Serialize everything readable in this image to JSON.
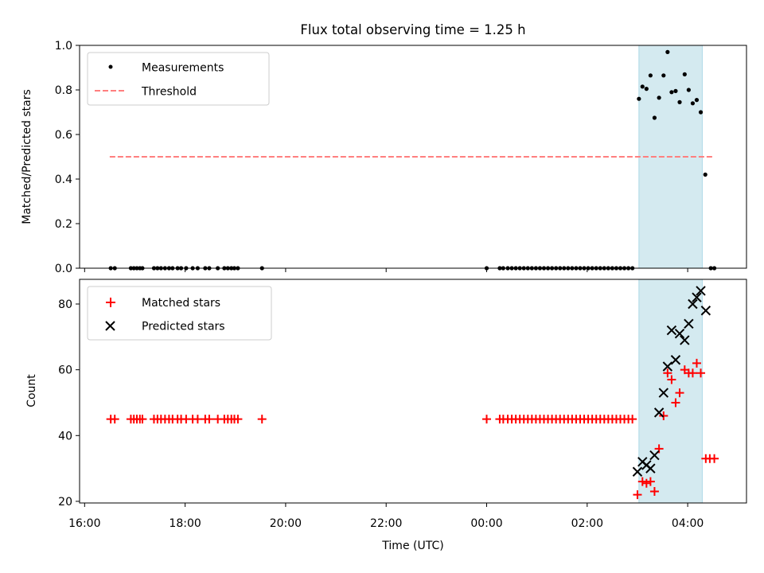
{
  "title": "Flux total observing time = 1.25 h",
  "x_axis": {
    "label": "Time (UTC)",
    "ticks": [
      {
        "label": "16:00",
        "t": -8.0
      },
      {
        "label": "18:00",
        "t": -6.0
      },
      {
        "label": "20:00",
        "t": -4.0
      },
      {
        "label": "22:00",
        "t": -2.0
      },
      {
        "label": "00:00",
        "t": 0.0
      },
      {
        "label": "02:00",
        "t": 2.0
      },
      {
        "label": "04:00",
        "t": 4.0
      }
    ],
    "range_hours_from_midnight": [
      -8.1,
      5.17
    ]
  },
  "window": {
    "start": 3.03,
    "end": 4.29,
    "color": "#d4eaf0"
  },
  "colors": {
    "measurement": "#000000",
    "threshold": "#ff7f7f",
    "matched": "#ff0000",
    "predicted": "#000000",
    "window_edge": "#add8e6"
  },
  "chart_data": [
    {
      "type": "scatter",
      "panel": "top",
      "ylabel": "Matched/Predicted stars",
      "ylim": [
        0.0,
        1.0
      ],
      "yticks": [
        "0.0",
        "0.2",
        "0.4",
        "0.6",
        "0.8",
        "1.0"
      ],
      "legend": {
        "position": "top-left",
        "entries": [
          "Measurements",
          "Threshold"
        ]
      },
      "threshold": {
        "value": 0.5,
        "x_range": [
          -7.5,
          4.5
        ]
      },
      "series": [
        {
          "name": "Measurements",
          "points": [
            [
              -7.48,
              0
            ],
            [
              -7.4,
              0
            ],
            [
              -7.08,
              0
            ],
            [
              -7.02,
              0
            ],
            [
              -6.96,
              0
            ],
            [
              -6.9,
              0
            ],
            [
              -6.85,
              0
            ],
            [
              -6.62,
              0
            ],
            [
              -6.55,
              0
            ],
            [
              -6.48,
              0
            ],
            [
              -6.4,
              0
            ],
            [
              -6.32,
              0
            ],
            [
              -6.25,
              0
            ],
            [
              -6.15,
              0
            ],
            [
              -6.08,
              0
            ],
            [
              -5.98,
              0
            ],
            [
              -5.85,
              0
            ],
            [
              -5.75,
              0
            ],
            [
              -5.6,
              0
            ],
            [
              -5.52,
              0
            ],
            [
              -5.35,
              0
            ],
            [
              -5.22,
              0
            ],
            [
              -5.15,
              0
            ],
            [
              -5.08,
              0
            ],
            [
              -5.02,
              0
            ],
            [
              -4.95,
              0
            ],
            [
              -4.47,
              0
            ],
            [
              0.0,
              0
            ],
            [
              0.26,
              0
            ],
            [
              0.33,
              0
            ],
            [
              0.42,
              0
            ],
            [
              0.5,
              0
            ],
            [
              0.58,
              0
            ],
            [
              0.66,
              0
            ],
            [
              0.74,
              0
            ],
            [
              0.82,
              0
            ],
            [
              0.9,
              0
            ],
            [
              0.98,
              0
            ],
            [
              1.06,
              0
            ],
            [
              1.14,
              0
            ],
            [
              1.22,
              0
            ],
            [
              1.3,
              0
            ],
            [
              1.38,
              0
            ],
            [
              1.46,
              0
            ],
            [
              1.54,
              0
            ],
            [
              1.62,
              0
            ],
            [
              1.7,
              0
            ],
            [
              1.78,
              0
            ],
            [
              1.86,
              0
            ],
            [
              1.94,
              0
            ],
            [
              2.02,
              0
            ],
            [
              2.1,
              0
            ],
            [
              2.18,
              0
            ],
            [
              2.26,
              0
            ],
            [
              2.34,
              0
            ],
            [
              2.42,
              0
            ],
            [
              2.5,
              0
            ],
            [
              2.58,
              0
            ],
            [
              2.66,
              0
            ],
            [
              2.74,
              0
            ],
            [
              2.82,
              0
            ],
            [
              2.9,
              0
            ],
            [
              3.03,
              0.76
            ],
            [
              3.1,
              0.815
            ],
            [
              3.18,
              0.805
            ],
            [
              3.26,
              0.865
            ],
            [
              3.34,
              0.675
            ],
            [
              3.43,
              0.765
            ],
            [
              3.52,
              0.865
            ],
            [
              3.6,
              0.97
            ],
            [
              3.68,
              0.79
            ],
            [
              3.76,
              0.795
            ],
            [
              3.84,
              0.745
            ],
            [
              3.94,
              0.87
            ],
            [
              4.02,
              0.8
            ],
            [
              4.1,
              0.74
            ],
            [
              4.18,
              0.755
            ],
            [
              4.26,
              0.7
            ],
            [
              4.35,
              0.42
            ],
            [
              4.46,
              0
            ],
            [
              4.53,
              0
            ]
          ]
        }
      ]
    },
    {
      "type": "scatter",
      "panel": "bottom",
      "ylabel": "Count",
      "ylim": [
        19.5,
        87.5
      ],
      "yticks": [
        "20",
        "40",
        "60",
        "80"
      ],
      "legend": {
        "position": "top-left",
        "entries": [
          "Matched stars",
          "Predicted stars"
        ]
      },
      "series": [
        {
          "name": "Matched stars",
          "marker": "plus",
          "points": [
            [
              -7.48,
              45
            ],
            [
              -7.4,
              45
            ],
            [
              -7.08,
              45
            ],
            [
              -7.02,
              45
            ],
            [
              -6.96,
              45
            ],
            [
              -6.9,
              45
            ],
            [
              -6.85,
              45
            ],
            [
              -6.62,
              45
            ],
            [
              -6.55,
              45
            ],
            [
              -6.48,
              45
            ],
            [
              -6.4,
              45
            ],
            [
              -6.32,
              45
            ],
            [
              -6.25,
              45
            ],
            [
              -6.15,
              45
            ],
            [
              -6.08,
              45
            ],
            [
              -5.98,
              45
            ],
            [
              -5.85,
              45
            ],
            [
              -5.75,
              45
            ],
            [
              -5.6,
              45
            ],
            [
              -5.52,
              45
            ],
            [
              -5.35,
              45
            ],
            [
              -5.22,
              45
            ],
            [
              -5.15,
              45
            ],
            [
              -5.08,
              45
            ],
            [
              -5.02,
              45
            ],
            [
              -4.95,
              45
            ],
            [
              -4.47,
              45
            ],
            [
              0.0,
              45
            ],
            [
              0.26,
              45
            ],
            [
              0.33,
              45
            ],
            [
              0.42,
              45
            ],
            [
              0.5,
              45
            ],
            [
              0.58,
              45
            ],
            [
              0.66,
              45
            ],
            [
              0.74,
              45
            ],
            [
              0.82,
              45
            ],
            [
              0.9,
              45
            ],
            [
              0.98,
              45
            ],
            [
              1.06,
              45
            ],
            [
              1.14,
              45
            ],
            [
              1.22,
              45
            ],
            [
              1.3,
              45
            ],
            [
              1.38,
              45
            ],
            [
              1.46,
              45
            ],
            [
              1.54,
              45
            ],
            [
              1.62,
              45
            ],
            [
              1.7,
              45
            ],
            [
              1.78,
              45
            ],
            [
              1.86,
              45
            ],
            [
              1.94,
              45
            ],
            [
              2.02,
              45
            ],
            [
              2.1,
              45
            ],
            [
              2.18,
              45
            ],
            [
              2.26,
              45
            ],
            [
              2.34,
              45
            ],
            [
              2.42,
              45
            ],
            [
              2.5,
              45
            ],
            [
              2.58,
              45
            ],
            [
              2.66,
              45
            ],
            [
              2.74,
              45
            ],
            [
              2.82,
              45
            ],
            [
              2.9,
              45
            ],
            [
              3.0,
              22
            ],
            [
              3.1,
              26
            ],
            [
              3.18,
              25.5
            ],
            [
              3.26,
              26
            ],
            [
              3.34,
              23
            ],
            [
              3.43,
              36
            ],
            [
              3.52,
              46
            ],
            [
              3.6,
              59
            ],
            [
              3.68,
              57
            ],
            [
              3.76,
              50
            ],
            [
              3.84,
              53
            ],
            [
              3.94,
              60
            ],
            [
              4.02,
              59
            ],
            [
              4.1,
              59
            ],
            [
              4.18,
              62
            ],
            [
              4.26,
              59
            ],
            [
              4.36,
              33
            ],
            [
              4.44,
              33
            ],
            [
              4.53,
              33
            ]
          ]
        },
        {
          "name": "Predicted stars",
          "marker": "x",
          "points": [
            [
              3.0,
              29
            ],
            [
              3.1,
              32
            ],
            [
              3.18,
              31
            ],
            [
              3.26,
              30
            ],
            [
              3.34,
              34
            ],
            [
              3.43,
              47
            ],
            [
              3.52,
              53
            ],
            [
              3.6,
              61
            ],
            [
              3.68,
              72
            ],
            [
              3.76,
              63
            ],
            [
              3.84,
              71
            ],
            [
              3.94,
              69
            ],
            [
              4.02,
              74
            ],
            [
              4.1,
              80
            ],
            [
              4.18,
              82
            ],
            [
              4.26,
              84
            ],
            [
              4.36,
              78
            ]
          ]
        }
      ]
    }
  ]
}
